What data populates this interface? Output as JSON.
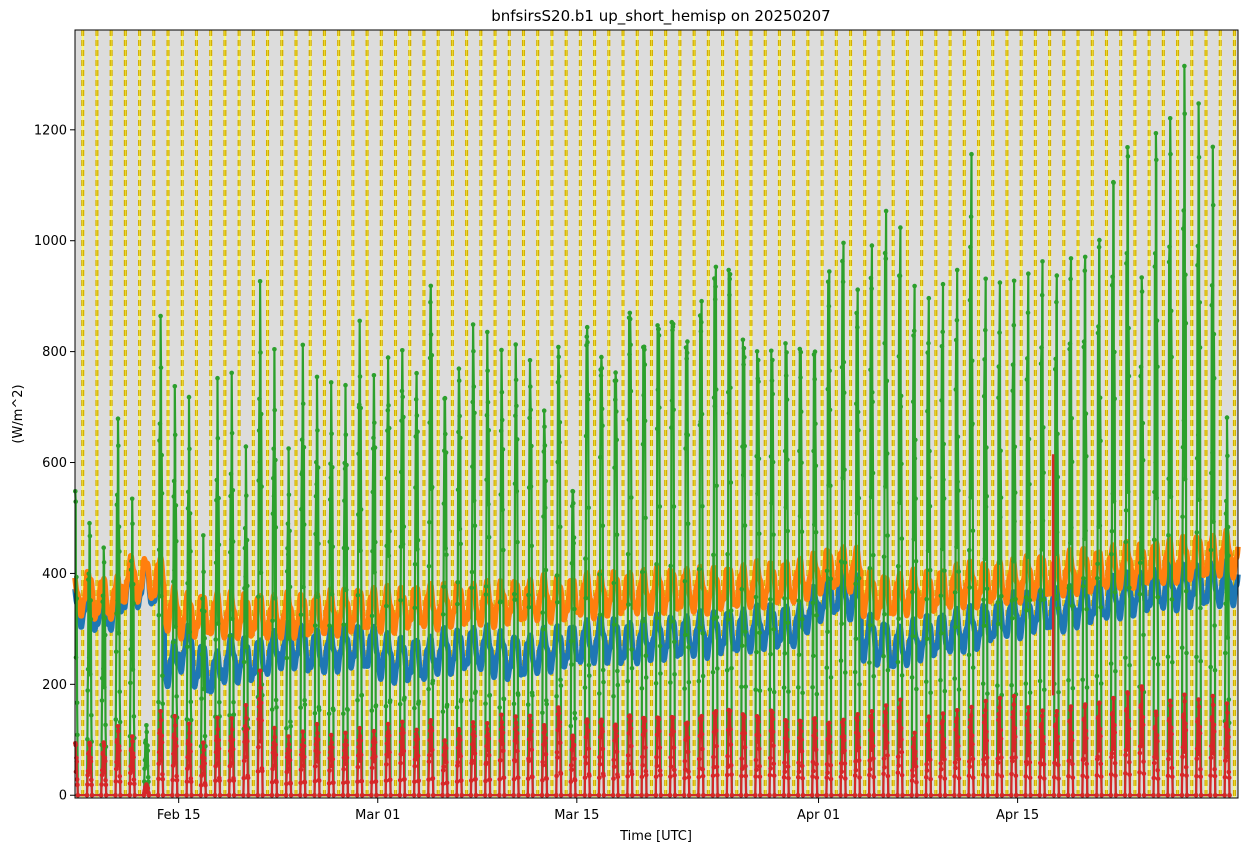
{
  "chart_data": {
    "type": "line",
    "title": "bnfsirsS20.b1 up_short_hemisp on 20250207",
    "xlabel": "Time [UTC]",
    "ylabel": "(W/m^2)",
    "x_range": [
      "2025-02-07T17:00",
      "2025-04-30T12:00"
    ],
    "ylim": [
      -5,
      1380
    ],
    "grid": false,
    "background_color": "#dcdcdc",
    "night_band_color": "#ffff66",
    "night_line_color": "#d4b000",
    "x_ticks": [
      {
        "date": "2025-02-15",
        "label": "Feb 15"
      },
      {
        "date": "2025-03-01",
        "label": "Mar 01"
      },
      {
        "date": "2025-03-15",
        "label": "Mar 15"
      },
      {
        "date": "2025-04-01",
        "label": "Apr 01"
      },
      {
        "date": "2025-04-15",
        "label": "Apr 15"
      }
    ],
    "y_ticks": [
      0,
      200,
      400,
      600,
      800,
      1000,
      1200
    ],
    "series": [
      {
        "color": "#1f77b4",
        "style": "diurnal_baseline",
        "daily_min": [
          300,
          310,
          300,
          300,
          345,
          345,
          345,
          200,
          230,
          200,
          185,
          210,
          210,
          210,
          220,
          235,
          235,
          225,
          225,
          230,
          235,
          230,
          215,
          210,
          210,
          210,
          225,
          225,
          230,
          230,
          220,
          215,
          215,
          225,
          230,
          235,
          240,
          245,
          245,
          240,
          240,
          250,
          250,
          255,
          255,
          260,
          260,
          265,
          270,
          270,
          270,
          300,
          320,
          330,
          320,
          250,
          240,
          230,
          240,
          250,
          255,
          260,
          265,
          270,
          280,
          290,
          290,
          300,
          300,
          300,
          310,
          315,
          320,
          325,
          330,
          335,
          340,
          340,
          345,
          345,
          345,
          350
        ]
      },
      {
        "color": "#ff7f0e",
        "style": "diurnal_baseline",
        "daily_min": [
          320,
          330,
          320,
          320,
          355,
          355,
          355,
          300,
          290,
          290,
          290,
          290,
          290,
          290,
          285,
          290,
          290,
          290,
          295,
          295,
          300,
          300,
          300,
          300,
          305,
          305,
          305,
          310,
          310,
          310,
          310,
          315,
          315,
          320,
          320,
          320,
          325,
          325,
          330,
          330,
          330,
          335,
          335,
          335,
          335,
          340,
          340,
          345,
          345,
          350,
          350,
          360,
          370,
          375,
          370,
          330,
          325,
          325,
          330,
          330,
          335,
          340,
          345,
          345,
          350,
          350,
          355,
          360,
          360,
          365,
          370,
          370,
          375,
          380,
          380,
          385,
          385,
          390,
          395,
          395,
          400,
          400
        ]
      },
      {
        "color": "#2ca02c",
        "style": "diurnal_peaks",
        "daily_peak": [
          585,
          520,
          470,
          710,
          555,
          130,
          885,
          750,
          725,
          470,
          755,
          770,
          640,
          950,
          830,
          650,
          850,
          795,
          790,
          790,
          920,
          820,
          860,
          880,
          840,
          1020,
          800,
          840,
          905,
          870,
          830,
          860,
          850,
          770,
          920,
          640,
          990,
          930,
          900,
          1030,
          960,
          1000,
          940,
          1000,
          1070,
          1080,
          930,
          900,
          895,
          905,
          900,
          895,
          1050,
          1100,
          1000,
          1080,
          1140,
          1100,
          980,
          950,
          970,
          990,
          1200,
          960,
          950,
          960,
          980,
          1010,
          990,
          1030,
          1040,
          1080,
          1200,
          1260,
          1000,
          1270,
          1290,
          1380,
          1300,
          1210,
          700,
          1225
        ]
      },
      {
        "color": "#d62728",
        "style": "diurnal_peaks",
        "daily_peak": [
          100,
          100,
          100,
          130,
          110,
          20,
          155,
          145,
          130,
          95,
          140,
          140,
          165,
          230,
          125,
          110,
          120,
          135,
          115,
          120,
          130,
          125,
          140,
          145,
          130,
          150,
          110,
          130,
          140,
          135,
          150,
          150,
          155,
          140,
          180,
          125,
          160,
          160,
          150,
          170,
          165,
          165,
          150,
          160,
          170,
          175,
          165,
          160,
          170,
          150,
          150,
          155,
          145,
          150,
          160,
          165,
          175,
          185,
          120,
          150,
          155,
          160,
          165,
          175,
          180,
          185,
          165,
          160,
          160,
          170,
          175,
          180,
          190,
          200,
          210,
          160,
          180,
          190,
          180,
          185,
          170,
          175
        ]
      }
    ],
    "spike": {
      "series_color": "#d62728",
      "date": "2025-04-17T12:00",
      "value": 615,
      "base": 180
    }
  }
}
